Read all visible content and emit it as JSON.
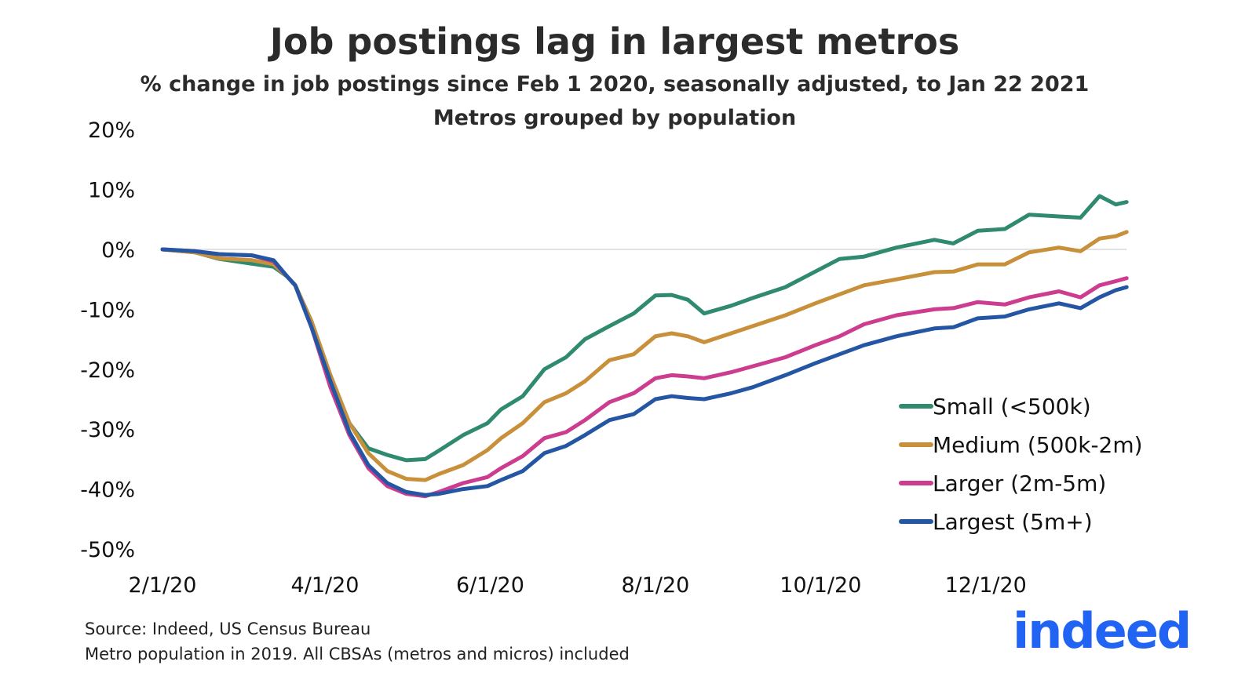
{
  "chart_data": {
    "type": "line",
    "title": "Job postings lag in largest metros",
    "subtitle": "% change in job postings since Feb 1 2020, seasonally adjusted, to Jan 22 2021",
    "subtitle2": "Metros grouped by population",
    "xlabel": "",
    "ylabel": "",
    "x_unit": "days since 2/1/20",
    "x": [
      0,
      12,
      21,
      33,
      41,
      46,
      49,
      55,
      62,
      69,
      76,
      83,
      90,
      97,
      102,
      111,
      120,
      125,
      133,
      141,
      149,
      156,
      165,
      174,
      182,
      188,
      194,
      200,
      210,
      218,
      230,
      241,
      250,
      259,
      271,
      285,
      292,
      301,
      311,
      320,
      331,
      339,
      346,
      352,
      356
    ],
    "xlim": [
      0,
      356
    ],
    "ylim": [
      -50,
      20
    ],
    "x_ticks": [
      {
        "day": 0,
        "label": "2/1/20"
      },
      {
        "day": 60,
        "label": "4/1/20"
      },
      {
        "day": 121,
        "label": "6/1/20"
      },
      {
        "day": 182,
        "label": "8/1/20"
      },
      {
        "day": 243,
        "label": "10/1/20"
      },
      {
        "day": 304,
        "label": "12/1/20"
      }
    ],
    "y_ticks": [
      {
        "value": 20,
        "label": "20%"
      },
      {
        "value": 10,
        "label": "10%"
      },
      {
        "value": 0,
        "label": "0%"
      },
      {
        "value": -10,
        "label": "-10%"
      },
      {
        "value": -20,
        "label": "-20%"
      },
      {
        "value": -30,
        "label": "-30%"
      },
      {
        "value": -40,
        "label": "-40%"
      },
      {
        "value": -50,
        "label": "-50%"
      }
    ],
    "legend_position": "bottom-right",
    "series": [
      {
        "name": "Small (<500k)",
        "color": "#2f8a6f",
        "values": [
          0,
          -0.5,
          -1.6,
          -2.4,
          -2.9,
          -4.5,
          -6,
          -12,
          -21,
          -29,
          -33.2,
          -34.3,
          -35.2,
          -35,
          -33.6,
          -31,
          -29,
          -26.7,
          -24.5,
          -20,
          -18,
          -15,
          -12.8,
          -10.7,
          -7.7,
          -7.6,
          -8.4,
          -10.7,
          -9.4,
          -8.1,
          -6.3,
          -3.7,
          -1.6,
          -1.2,
          0.3,
          1.6,
          1,
          3.1,
          3.4,
          5.8,
          5.5,
          5.3,
          8.9,
          7.5,
          7.9
        ]
      },
      {
        "name": "Medium (500k-2m)",
        "color": "#c8903a",
        "values": [
          0,
          -0.5,
          -1.5,
          -1.8,
          -2.5,
          -4.5,
          -6,
          -12,
          -21,
          -29,
          -34,
          -37,
          -38.3,
          -38.5,
          -37.5,
          -36,
          -33.5,
          -31.5,
          -29,
          -25.5,
          -24,
          -22,
          -18.5,
          -17.5,
          -14.5,
          -14,
          -14.5,
          -15.5,
          -14,
          -12.8,
          -11,
          -9,
          -7.5,
          -6,
          -5,
          -3.8,
          -3.7,
          -2.5,
          -2.5,
          -0.5,
          0.3,
          -0.3,
          1.8,
          2.2,
          2.9
        ]
      },
      {
        "name": "Larger (2m-5m)",
        "color": "#cc3d8f",
        "values": [
          0,
          -0.3,
          -0.8,
          -1,
          -2,
          -4.5,
          -6,
          -13,
          -23,
          -31,
          -36.5,
          -39.5,
          -40.8,
          -41.2,
          -40.5,
          -39,
          -38,
          -36.5,
          -34.5,
          -31.5,
          -30.5,
          -28.5,
          -25.5,
          -24,
          -21.5,
          -21,
          -21.2,
          -21.5,
          -20.5,
          -19.5,
          -18,
          -16,
          -14.5,
          -12.5,
          -11,
          -10,
          -9.8,
          -8.8,
          -9.2,
          -8,
          -7,
          -8,
          -6,
          -5.3,
          -4.8
        ]
      },
      {
        "name": "Largest (5m+)",
        "color": "#2456a4",
        "values": [
          0,
          -0.3,
          -0.8,
          -1,
          -1.8,
          -4.5,
          -6,
          -13,
          -22,
          -30.5,
          -36,
          -39,
          -40.5,
          -41,
          -40.8,
          -40,
          -39.5,
          -38.5,
          -37,
          -34,
          -32.8,
          -31,
          -28.5,
          -27.5,
          -25,
          -24.5,
          -24.8,
          -25,
          -24,
          -23,
          -21,
          -19,
          -17.5,
          -16,
          -14.5,
          -13.2,
          -13,
          -11.5,
          -11.2,
          -10,
          -9,
          -9.8,
          -8,
          -6.8,
          -6.3
        ]
      }
    ]
  },
  "footer": {
    "source": "Source: Indeed, US Census Bureau",
    "note": "Metro population in 2019. All CBSAs (metros and micros) included"
  },
  "logo": {
    "text": "indeed",
    "color": "#2164f3"
  }
}
